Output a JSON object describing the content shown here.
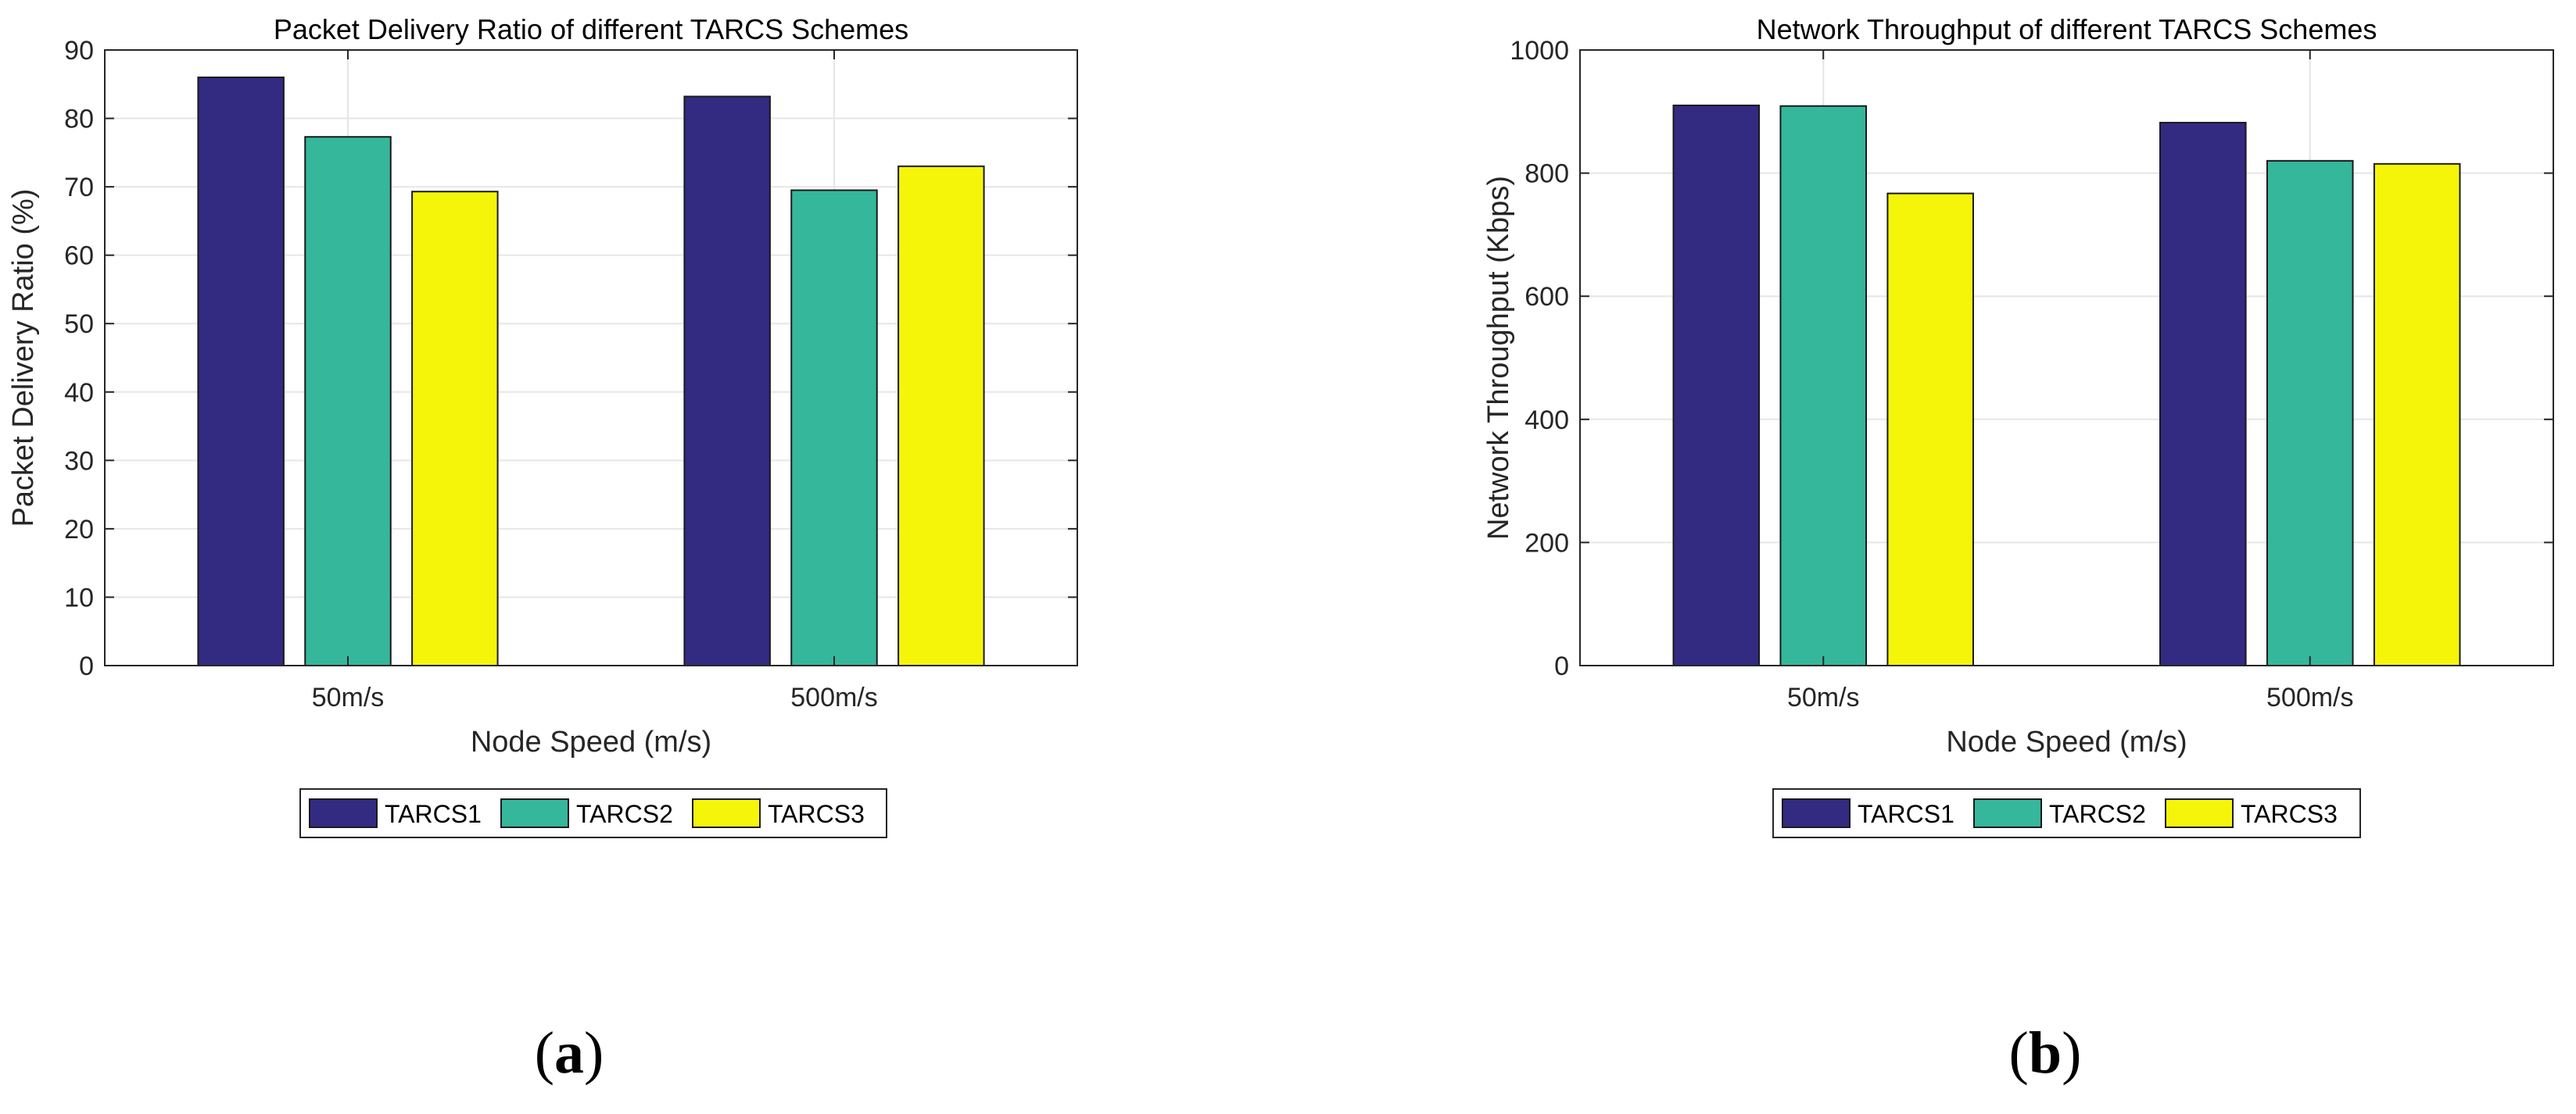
{
  "series_colors": [
    "#332a82",
    "#35b79b",
    "#f5f50a"
  ],
  "chart_data": [
    {
      "type": "bar",
      "panel_label": "a",
      "title": "Packet Delivery Ratio of different TARCS Schemes",
      "xlabel": "Node Speed (m/s)",
      "ylabel": "Packet Delivery Ratio (%)",
      "categories": [
        "50m/s",
        "500m/s"
      ],
      "ylim": [
        0,
        90
      ],
      "yticks": [
        0,
        10,
        20,
        30,
        40,
        50,
        60,
        70,
        80,
        90
      ],
      "grid": true,
      "legend_position": "bottom-outside",
      "series": [
        {
          "name": "TARCS1",
          "values": [
            86.0,
            83.2
          ]
        },
        {
          "name": "TARCS2",
          "values": [
            77.3,
            69.5
          ]
        },
        {
          "name": "TARCS3",
          "values": [
            69.3,
            73.0
          ]
        }
      ]
    },
    {
      "type": "bar",
      "panel_label": "b",
      "title": "Network Throughput of different TARCS Schemes",
      "xlabel": "Node Speed (m/s)",
      "ylabel": "Network Throughput (Kbps)",
      "categories": [
        "50m/s",
        "500m/s"
      ],
      "ylim": [
        0,
        1000
      ],
      "yticks": [
        0,
        200,
        400,
        600,
        800,
        1000
      ],
      "grid": true,
      "legend_position": "bottom-outside",
      "series": [
        {
          "name": "TARCS1",
          "values": [
            910,
            882
          ]
        },
        {
          "name": "TARCS2",
          "values": [
            909,
            820
          ]
        },
        {
          "name": "TARCS3",
          "values": [
            767,
            815
          ]
        }
      ]
    }
  ]
}
